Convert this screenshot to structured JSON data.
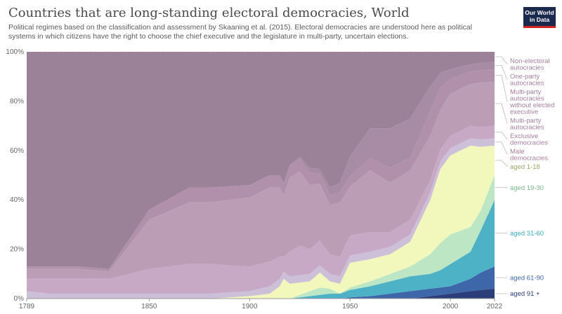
{
  "header": {
    "title": "Countries that are long-standing electoral democracies, World",
    "subtitle": "Political regimes based on the classification and assessment by Skaaning et al. (2015). Electoral democracies are understood here as political systems in which citizens have the right to choose the chief executive and the legislature in multi-party, uncertain elections.",
    "logo_line1": "Our World",
    "logo_line2": "in Data"
  },
  "chart_data": {
    "type": "area",
    "stacked": true,
    "x": [
      1789,
      1800,
      1815,
      1830,
      1850,
      1870,
      1880,
      1900,
      1910,
      1915,
      1917,
      1920,
      1925,
      1930,
      1935,
      1940,
      1945,
      1950,
      1960,
      1970,
      1980,
      1990,
      1995,
      2000,
      2010,
      2015,
      2022
    ],
    "x_ticks": [
      1789,
      1850,
      1900,
      1950,
      2000,
      2022
    ],
    "y_ticks": [
      "0%",
      "20%",
      "40%",
      "60%",
      "80%",
      "100%"
    ],
    "ylim": [
      0,
      100
    ],
    "series": [
      {
        "name": "aged 91 +",
        "color": "#2c3e7a",
        "label_color": "#2c3e7a",
        "values": [
          0,
          0,
          0,
          0,
          0,
          0,
          0,
          0,
          0,
          0,
          0,
          0,
          0,
          0,
          0,
          0,
          0,
          0,
          0,
          0,
          0,
          1,
          1.5,
          2,
          3,
          3.5,
          4
        ]
      },
      {
        "name": "aged 61-90",
        "color": "#3d67a8",
        "label_color": "#3d67a8",
        "values": [
          0,
          0,
          0,
          0,
          0,
          0,
          0,
          0,
          0,
          0,
          0,
          0,
          0,
          0,
          0,
          0,
          0,
          0.5,
          1,
          2,
          3,
          3,
          3,
          3,
          5,
          7,
          9
        ]
      },
      {
        "name": "aged 31-60",
        "color": "#4db2c5",
        "label_color": "#3fa9bd",
        "values": [
          0,
          0,
          0,
          0,
          0,
          0,
          0,
          0,
          0,
          0,
          0,
          0,
          0.5,
          1,
          1.5,
          2,
          2,
          3,
          4,
          5,
          6,
          6,
          7,
          9,
          11,
          17,
          27
        ]
      },
      {
        "name": "aged 19-30",
        "color": "#bde6c4",
        "label_color": "#7ab88a",
        "values": [
          0,
          0,
          0,
          0,
          0,
          0,
          0,
          0,
          0,
          0,
          0,
          0,
          1,
          2,
          3,
          2,
          0,
          1,
          2,
          3,
          4,
          8,
          11,
          12,
          10,
          8,
          10
        ]
      },
      {
        "name": "aged 1-18",
        "color": "#f2f8bb",
        "label_color": "#9aa86a",
        "values": [
          0,
          0,
          0,
          0,
          0,
          0,
          0,
          1,
          2,
          5,
          8,
          6,
          5,
          4,
          6,
          3,
          4,
          10,
          9,
          8,
          10,
          22,
          30,
          32,
          33,
          26,
          12
        ]
      },
      {
        "name": "Male democracies",
        "color": "#ccbfd8",
        "label_color": "#a77f9e",
        "values": [
          3,
          2,
          2,
          2,
          2,
          2,
          2,
          2,
          3,
          3,
          3,
          3,
          3,
          3,
          3,
          3,
          3,
          3,
          3,
          3,
          3,
          3,
          3,
          3,
          3,
          3,
          3
        ]
      },
      {
        "name": "Exclusive democracies",
        "color": "#c7a9c5",
        "label_color": "#a77f9e",
        "values": [
          5,
          6,
          6,
          6,
          10,
          12,
          12,
          10,
          10,
          9,
          6,
          10,
          12,
          10,
          10,
          8,
          8,
          8,
          8,
          6,
          6,
          5,
          5,
          5,
          5,
          5,
          5
        ]
      },
      {
        "name": "Multi-party autocracies",
        "color": "#bb9db6",
        "label_color": "#a77f9e",
        "values": [
          4,
          4,
          4,
          3,
          20,
          25,
          25,
          28,
          30,
          28,
          25,
          30,
          30,
          26,
          23,
          20,
          22,
          20,
          25,
          20,
          20,
          18,
          16,
          17,
          17,
          18,
          18
        ]
      },
      {
        "name": "Multi-party autocracies without elected executive",
        "color": "#b090ab",
        "label_color": "#a77f9e",
        "values": [
          1,
          1,
          1,
          1,
          4,
          6,
          6,
          5,
          5,
          5,
          5,
          5,
          5,
          5,
          4,
          4,
          4,
          4,
          5,
          6,
          5,
          10,
          9,
          6,
          5,
          5,
          5
        ]
      },
      {
        "name": "One-party autocracies",
        "color": "#a88ba4",
        "label_color": "#a77f9e",
        "values": [
          0,
          0,
          0,
          0,
          0,
          0,
          0,
          0,
          0,
          0,
          0,
          0,
          1,
          2,
          2,
          3,
          4,
          8,
          12,
          16,
          16,
          10,
          6,
          4,
          3,
          3,
          3
        ]
      },
      {
        "name": "Non-electoral autocracies",
        "color": "#9c8299",
        "label_color": "#a77f9e",
        "values": [
          87,
          87,
          87,
          88,
          64,
          55,
          55,
          54,
          50,
          50,
          53,
          46,
          42.5,
          47,
          47.5,
          55,
          53,
          42.5,
          31,
          31,
          27,
          14,
          8.5,
          7,
          5,
          4.5,
          4
        ]
      }
    ]
  }
}
